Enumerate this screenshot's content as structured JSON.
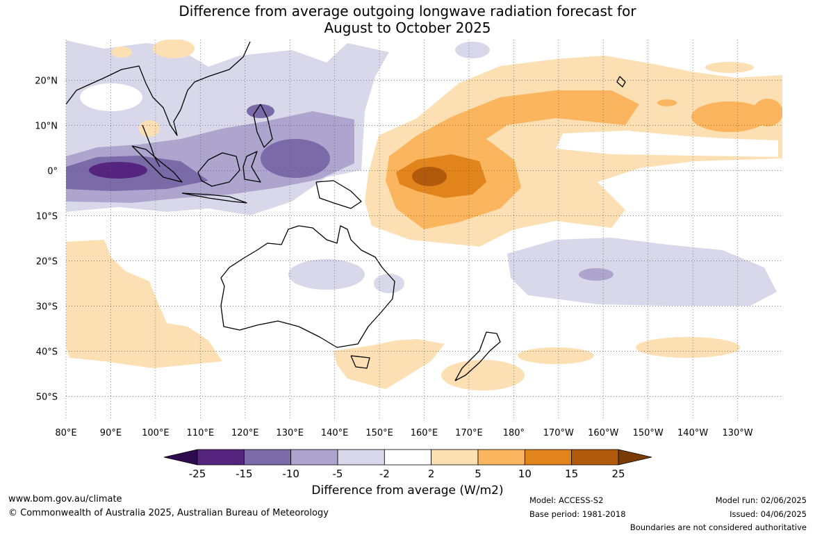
{
  "title": {
    "line1": "Difference from average outgoing longwave radiation forecast for",
    "line2": "August to October 2025"
  },
  "map": {
    "lat_labels": [
      "20°N",
      "10°N",
      "0°",
      "10°S",
      "20°S",
      "30°S",
      "40°S",
      "50°S"
    ],
    "lat_values": [
      20,
      10,
      0,
      -10,
      -20,
      -30,
      -40,
      -50
    ],
    "lon_labels": [
      "80°E",
      "90°E",
      "100°E",
      "110°E",
      "120°E",
      "130°E",
      "140°E",
      "150°E",
      "160°E",
      "170°E",
      "180°",
      "170°W",
      "160°W",
      "150°W",
      "140°W",
      "130°W"
    ],
    "lon_values": [
      80,
      90,
      100,
      110,
      120,
      130,
      140,
      150,
      160,
      170,
      180,
      190,
      200,
      210,
      220,
      230
    ],
    "lon_range": [
      80,
      240
    ],
    "lat_range": [
      -55,
      29
    ]
  },
  "colorbar": {
    "title": "Difference from average (W/m2)",
    "tick_labels": [
      "-25",
      "-15",
      "-10",
      "-5",
      "-2",
      "2",
      "5",
      "10",
      "15",
      "25"
    ],
    "colors": [
      "#54247f",
      "#7b6aa8",
      "#aea5ce",
      "#d8d8ea",
      "#ffffff",
      "#fddfb4",
      "#fbb55e",
      "#e0841b",
      "#b15a0c"
    ],
    "extend_low_color": "#2e0a4e",
    "extend_high_color": "#7a3b05"
  },
  "footer": {
    "website": "www.bom.gov.au/climate",
    "copyright": "© Commonwealth of Australia 2025, Australian Bureau of Meteorology",
    "model": "Model: ACCESS-S2",
    "base_period": "Base period: 1981-2018",
    "model_run": "Model run: 02/06/2025",
    "issued": "Issued: 04/06/2025",
    "disclaimer": "Boundaries are not considered authoritative"
  }
}
